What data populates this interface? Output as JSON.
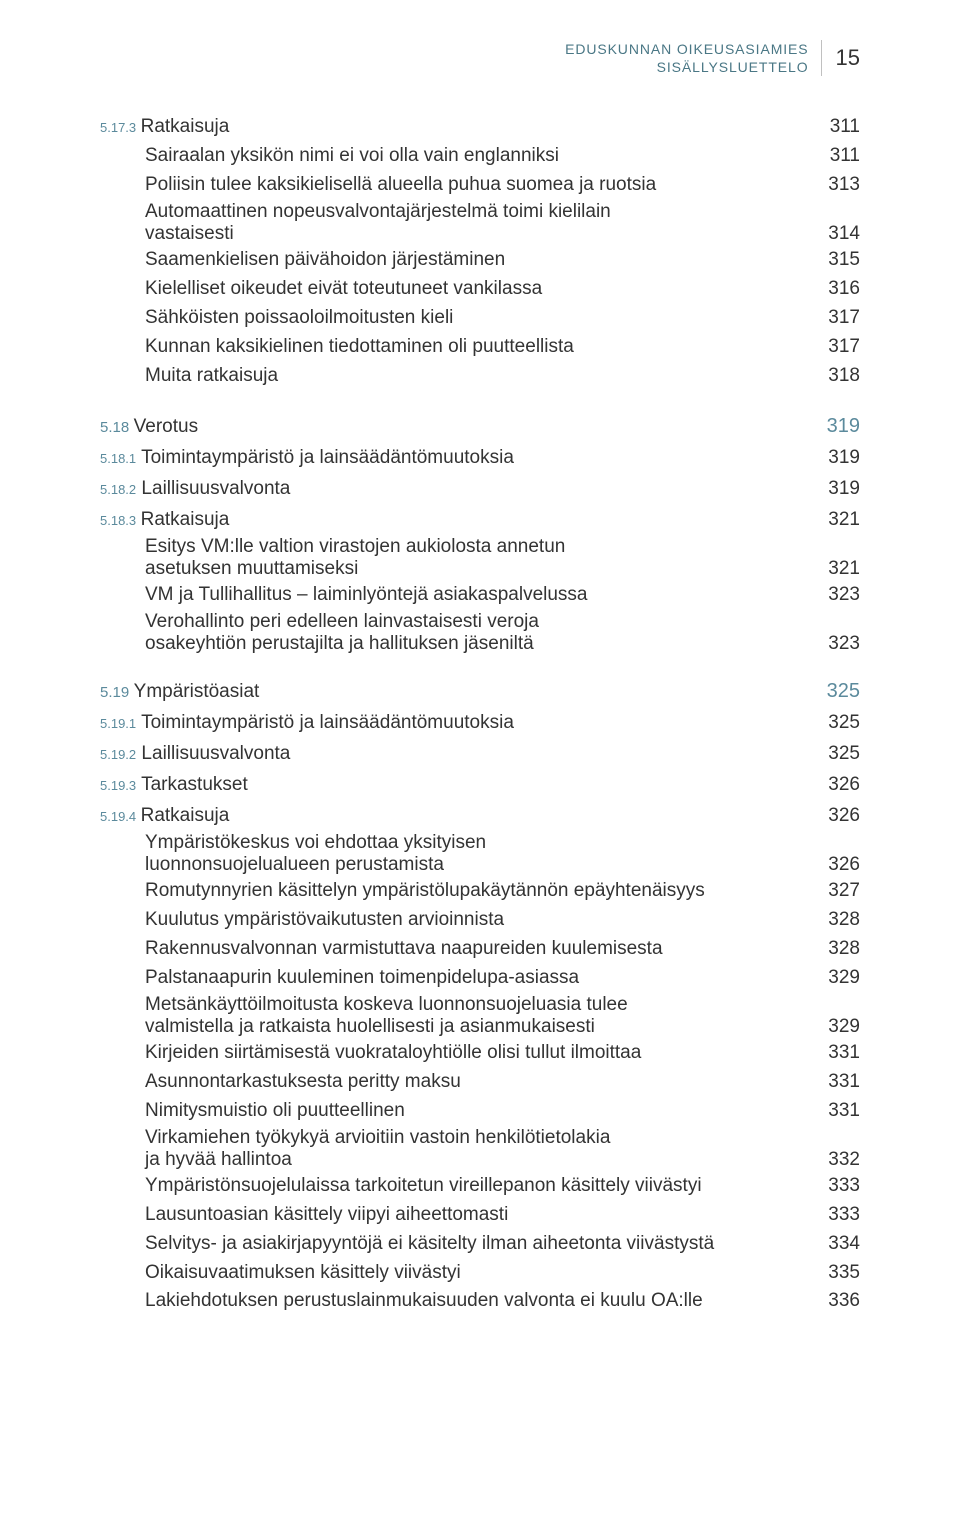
{
  "header": {
    "line1": "EDUSKUNNAN OIKEUSASIAMIES",
    "line2": "SISÄLLYSLUETTELO",
    "page": "15"
  },
  "s5173": {
    "num": "5.17.3",
    "title": "Ratkaisuja",
    "pg": "311",
    "items": [
      {
        "t": "Sairaalan yksikön nimi ei voi olla vain englanniksi",
        "p": "311"
      },
      {
        "t": "Poliisin tulee kaksikielisellä alueella puhua suomea ja ruotsia",
        "p": "313"
      },
      {
        "t1": "Automaattinen nopeusvalvontajärjestelmä toimi kielilain",
        "t2": "vastaisesti",
        "p": "314"
      },
      {
        "t": "Saamenkielisen päivähoidon järjestäminen",
        "p": "315"
      },
      {
        "t": "Kielelliset oikeudet eivät toteutuneet vankilassa",
        "p": "316"
      },
      {
        "t": "Sähköisten poissaoloilmoitusten kieli",
        "p": "317"
      },
      {
        "t": "Kunnan kaksikielinen tiedottaminen oli puutteellista",
        "p": "317"
      },
      {
        "t": "Muita ratkaisuja",
        "p": "318"
      }
    ]
  },
  "s518": {
    "num": "5.18",
    "title": "Verotus",
    "pg": "319",
    "subs": [
      {
        "num": "5.18.1",
        "title": "Toimintaympäristö ja lainsäädäntömuutoksia",
        "pg": "319"
      },
      {
        "num": "5.18.2",
        "title": "Laillisuusvalvonta",
        "pg": "319"
      }
    ],
    "s5183": {
      "num": "5.18.3",
      "title": "Ratkaisuja",
      "pg": "321",
      "items": [
        {
          "t1": "Esitys VM:lle valtion virastojen aukiolosta annetun",
          "t2": "asetuksen muuttamiseksi",
          "p": "321"
        },
        {
          "t": "VM ja Tullihallitus – laiminlyöntejä asiakaspalvelussa",
          "p": "323"
        },
        {
          "t1": "Verohallinto peri edelleen lainvastaisesti veroja",
          "t2": "osakeyhtiön perustajilta ja hallituksen jäseniltä",
          "p": "323"
        }
      ]
    }
  },
  "s519": {
    "num": "5.19",
    "title": "Ympäristöasiat",
    "pg": "325",
    "subs": [
      {
        "num": "5.19.1",
        "title": "Toimintaympäristö ja lainsäädäntömuutoksia",
        "pg": "325"
      },
      {
        "num": "5.19.2",
        "title": "Laillisuusvalvonta",
        "pg": "325"
      },
      {
        "num": "5.19.3",
        "title": "Tarkastukset",
        "pg": "326"
      }
    ],
    "s5194": {
      "num": "5.19.4",
      "title": "Ratkaisuja",
      "pg": "326",
      "items": [
        {
          "t1": "Ympäristökeskus voi ehdottaa yksityisen",
          "t2": "luonnonsuojelualueen perustamista",
          "p": "326"
        },
        {
          "t": "Romutynnyrien käsittelyn ympäristölupakäytännön epäyhtenäisyys",
          "p": "327"
        },
        {
          "t": "Kuulutus ympäristövaikutusten arvioinnista",
          "p": "328"
        },
        {
          "t": "Rakennusvalvonnan varmistuttava naapureiden kuulemisesta",
          "p": "328"
        },
        {
          "t": "Palstanaapurin kuuleminen toimenpidelupa-asiassa",
          "p": "329"
        },
        {
          "t1": "Metsänkäyttöilmoitusta koskeva luonnonsuojeluasia tulee",
          "t2": "valmistella ja ratkaista huolellisesti ja asianmukaisesti",
          "p": "329"
        },
        {
          "t": "Kirjeiden siirtämisestä vuokrataloyhtiölle olisi tullut ilmoittaa",
          "p": "331"
        },
        {
          "t": "Asunnontarkastuksesta peritty maksu",
          "p": "331"
        },
        {
          "t": "Nimitysmuistio oli puutteellinen",
          "p": "331"
        },
        {
          "t1": "Virkamiehen työkykyä arvioitiin vastoin henkilötietolakia",
          "t2": "ja hyvää hallintoa",
          "p": "332"
        },
        {
          "t": "Ympäristönsuojelulaissa tarkoitetun vireillepanon käsittely viivästyi",
          "p": "333"
        },
        {
          "t": "Lausuntoasian käsittely viipyi aiheettomasti",
          "p": "333"
        },
        {
          "t": "Selvitys- ja asiakirjapyyntöjä ei käsitelty ilman aiheetonta viivästystä",
          "p": "334"
        },
        {
          "t": "Oikaisuvaatimuksen käsittely viivästyi",
          "p": "335"
        },
        {
          "t": "Lakiehdotuksen perustuslainmukaisuuden valvonta ei kuulu OA:lle",
          "p": "336"
        }
      ]
    }
  }
}
